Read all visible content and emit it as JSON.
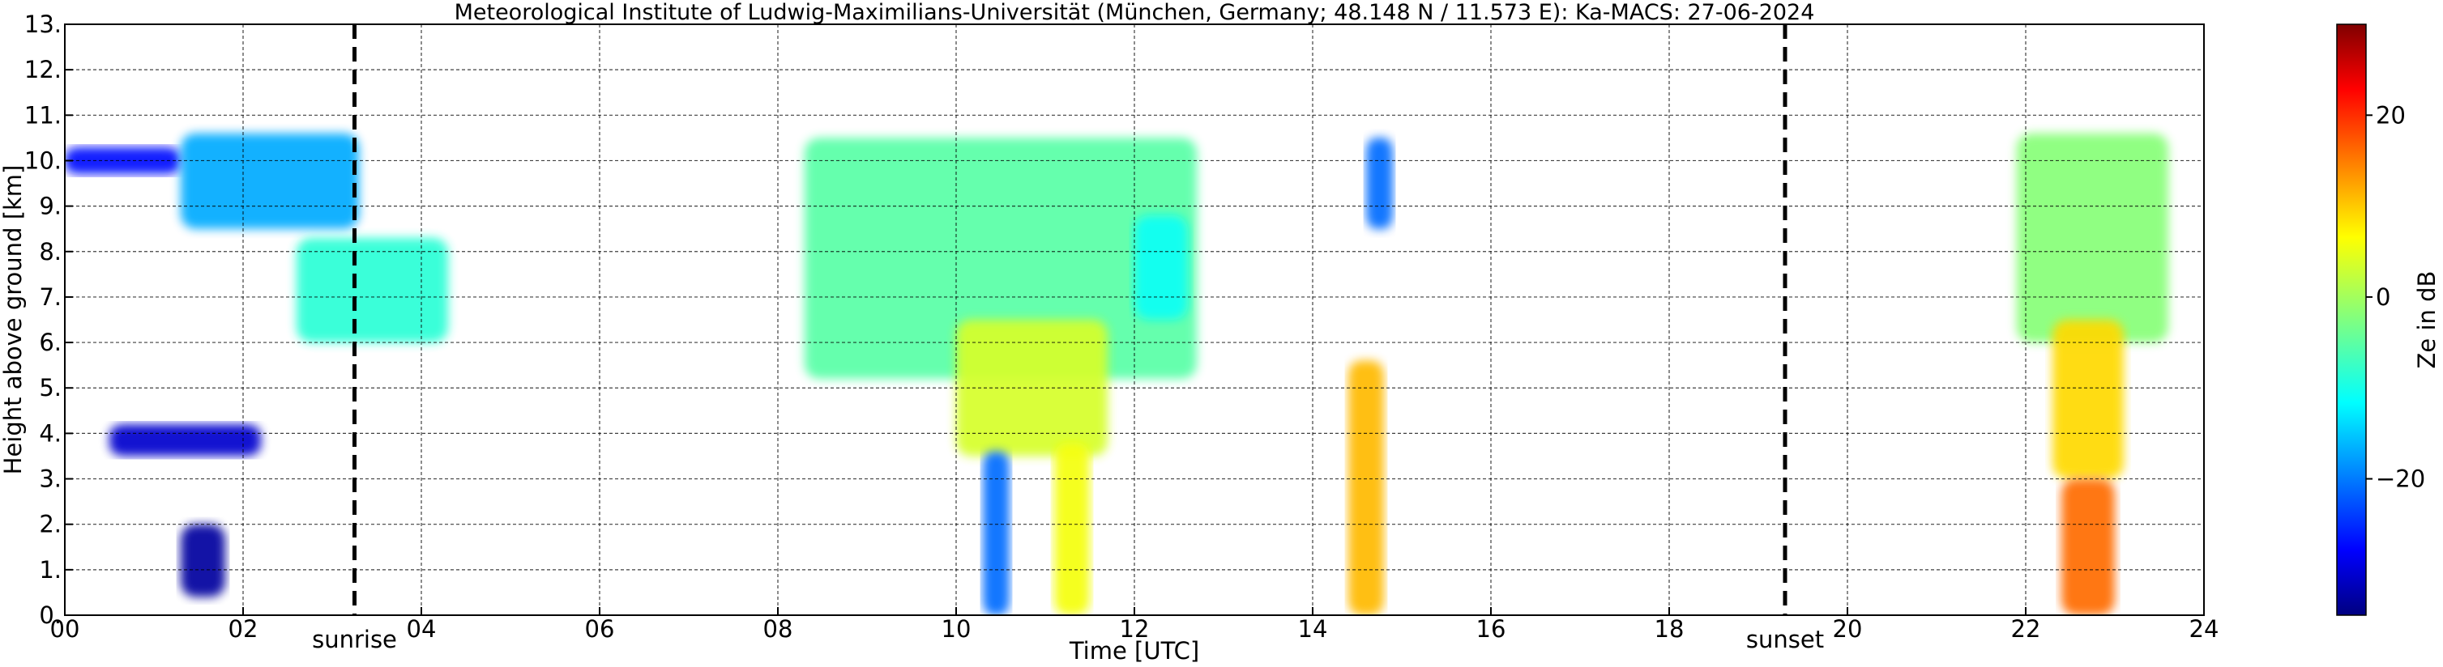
{
  "chart_data": {
    "type": "heatmap",
    "title": "Meteorological Institute of Ludwig-Maximilians-Universität (München, Germany; 48.148 N / 11.573 E):    Ka-MACS: 27-06-2024",
    "xlabel": "Time [UTC]",
    "ylabel": "Height above ground [km]",
    "xlim": [
      0,
      24
    ],
    "ylim": [
      0,
      13
    ],
    "x_ticks": [
      0,
      2,
      4,
      6,
      8,
      10,
      12,
      14,
      16,
      18,
      20,
      22,
      24
    ],
    "x_tick_labels": [
      "00",
      "02",
      "04",
      "06",
      "08",
      "10",
      "12",
      "14",
      "16",
      "18",
      "20",
      "22",
      "24"
    ],
    "y_ticks": [
      0,
      1,
      2,
      3,
      4,
      5,
      6,
      7,
      8,
      9,
      10,
      11,
      12,
      13
    ],
    "y_tick_labels": [
      "0.",
      "1.",
      "2.",
      "3.",
      "4.",
      "5.",
      "6.",
      "7.",
      "8.",
      "9.",
      "10.",
      "11.",
      "12.",
      "13."
    ],
    "grid": true,
    "colormap": "jet",
    "colorbar": {
      "label": "Ze in dB",
      "range": [
        -35,
        30
      ],
      "ticks": [
        20,
        0,
        -20
      ],
      "tick_labels": [
        "20",
        "0",
        "−20"
      ]
    },
    "annotations": [
      {
        "text": "sunrise",
        "x": 3.25
      },
      {
        "text": "sunset",
        "x": 19.3
      }
    ],
    "echoes": [
      {
        "x0": 0.0,
        "x1": 1.3,
        "y0": 9.7,
        "y1": 10.3,
        "ze": -26
      },
      {
        "x0": 1.3,
        "x1": 3.3,
        "y0": 8.5,
        "y1": 10.6,
        "ze": -16
      },
      {
        "x0": 2.6,
        "x1": 4.3,
        "y0": 6.0,
        "y1": 8.3,
        "ze": -8
      },
      {
        "x0": 0.5,
        "x1": 2.2,
        "y0": 3.5,
        "y1": 4.2,
        "ze": -30
      },
      {
        "x0": 1.3,
        "x1": 1.8,
        "y0": 0.4,
        "y1": 2.0,
        "ze": -33
      },
      {
        "x0": 8.3,
        "x1": 12.7,
        "y0": 5.2,
        "y1": 10.5,
        "ze": -5
      },
      {
        "x0": 10.0,
        "x1": 11.7,
        "y0": 3.5,
        "y1": 6.5,
        "ze": 3
      },
      {
        "x0": 10.3,
        "x1": 10.6,
        "y0": 0.0,
        "y1": 3.6,
        "ze": -20
      },
      {
        "x0": 11.1,
        "x1": 11.5,
        "y0": 0.0,
        "y1": 3.8,
        "ze": 5
      },
      {
        "x0": 12.0,
        "x1": 12.6,
        "y0": 6.5,
        "y1": 8.8,
        "ze": -10
      },
      {
        "x0": 14.4,
        "x1": 14.8,
        "y0": 0.0,
        "y1": 5.6,
        "ze": 10
      },
      {
        "x0": 14.6,
        "x1": 14.9,
        "y0": 8.5,
        "y1": 10.5,
        "ze": -20
      },
      {
        "x0": 21.9,
        "x1": 23.6,
        "y0": 6.0,
        "y1": 10.6,
        "ze": -2
      },
      {
        "x0": 22.3,
        "x1": 23.1,
        "y0": 3.0,
        "y1": 6.5,
        "ze": 8
      },
      {
        "x0": 22.4,
        "x1": 23.0,
        "y0": 0.0,
        "y1": 3.0,
        "ze": 15
      }
    ]
  }
}
